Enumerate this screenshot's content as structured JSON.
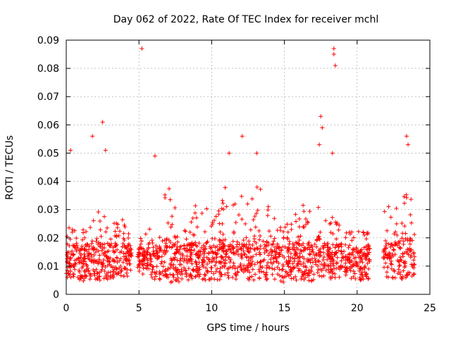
{
  "chart_data": {
    "type": "scatter",
    "title": "Day 062 of 2022, Rate Of TEC Index for receiver mchl",
    "xlabel": "GPS time / hours",
    "ylabel": "ROTI / TECUs",
    "xlim": [
      0,
      25
    ],
    "ylim": [
      0,
      0.09
    ],
    "x_ticks": [
      "0",
      "5",
      "10",
      "15",
      "20",
      "25"
    ],
    "y_ticks": [
      "0",
      "0.01",
      "0.02",
      "0.03",
      "0.04",
      "0.05",
      "0.06",
      "0.07",
      "0.08",
      "0.09"
    ],
    "grid": true,
    "marker": "+",
    "colors": {
      "series": "#ff0000"
    },
    "data_gaps_hours": [
      [
        4.5,
        4.9
      ],
      [
        20.9,
        21.8
      ]
    ],
    "outliers": [
      {
        "x": 5.2,
        "y": 0.087
      },
      {
        "x": 18.4,
        "y": 0.087
      },
      {
        "x": 18.4,
        "y": 0.085
      },
      {
        "x": 18.5,
        "y": 0.081
      },
      {
        "x": 17.5,
        "y": 0.063
      },
      {
        "x": 17.6,
        "y": 0.059
      },
      {
        "x": 2.5,
        "y": 0.061
      },
      {
        "x": 1.8,
        "y": 0.056
      },
      {
        "x": 12.1,
        "y": 0.056
      },
      {
        "x": 23.4,
        "y": 0.056
      },
      {
        "x": 17.4,
        "y": 0.053
      },
      {
        "x": 0.3,
        "y": 0.051
      },
      {
        "x": 18.3,
        "y": 0.05
      },
      {
        "x": 2.7,
        "y": 0.051
      },
      {
        "x": 6.1,
        "y": 0.049
      },
      {
        "x": 11.2,
        "y": 0.05
      },
      {
        "x": 13.1,
        "y": 0.05
      },
      {
        "x": 23.5,
        "y": 0.053
      }
    ],
    "series": [
      {
        "x": [
          0.0,
          0.5,
          1.0,
          1.5,
          2.0,
          2.5,
          3.0,
          3.5,
          4.0,
          4.5,
          5.0,
          5.5,
          6.0,
          6.5,
          7.0,
          7.5,
          8.0,
          8.5,
          9.0,
          9.5,
          10.0,
          10.5,
          11.0,
          11.5,
          12.0,
          12.5,
          13.0,
          13.5,
          14.0,
          14.5,
          15.0,
          15.5,
          16.0,
          16.5,
          17.0,
          17.5,
          18.0,
          18.5,
          19.0,
          19.5,
          20.0,
          20.5,
          21.8,
          22.0,
          22.5,
          23.0,
          23.5,
          24.0
        ],
        "y_low": [
          0.006,
          0.006,
          0.005,
          0.004,
          0.005,
          0.005,
          0.005,
          0.006,
          0.006,
          0.007,
          0.007,
          0.006,
          0.005,
          0.005,
          0.004,
          0.004,
          0.005,
          0.005,
          0.005,
          0.005,
          0.005,
          0.005,
          0.005,
          0.005,
          0.005,
          0.005,
          0.005,
          0.005,
          0.005,
          0.005,
          0.004,
          0.005,
          0.005,
          0.005,
          0.004,
          0.005,
          0.005,
          0.005,
          0.005,
          0.005,
          0.005,
          0.005,
          0.007,
          0.006,
          0.005,
          0.005,
          0.005,
          0.006
        ],
        "y_median": [
          0.012,
          0.012,
          0.011,
          0.012,
          0.012,
          0.013,
          0.012,
          0.012,
          0.012,
          0.012,
          0.011,
          0.012,
          0.012,
          0.013,
          0.014,
          0.013,
          0.012,
          0.012,
          0.013,
          0.013,
          0.012,
          0.012,
          0.013,
          0.013,
          0.013,
          0.013,
          0.013,
          0.014,
          0.013,
          0.012,
          0.012,
          0.012,
          0.013,
          0.013,
          0.013,
          0.014,
          0.013,
          0.012,
          0.012,
          0.011,
          0.011,
          0.011,
          0.012,
          0.012,
          0.013,
          0.013,
          0.014,
          0.013
        ],
        "y_high": [
          0.026,
          0.024,
          0.021,
          0.027,
          0.029,
          0.035,
          0.028,
          0.03,
          0.028,
          0.022,
          0.02,
          0.022,
          0.025,
          0.032,
          0.04,
          0.032,
          0.028,
          0.025,
          0.035,
          0.033,
          0.028,
          0.03,
          0.04,
          0.035,
          0.038,
          0.035,
          0.038,
          0.04,
          0.036,
          0.03,
          0.028,
          0.028,
          0.032,
          0.034,
          0.038,
          0.042,
          0.035,
          0.03,
          0.028,
          0.025,
          0.024,
          0.022,
          0.03,
          0.033,
          0.03,
          0.032,
          0.04,
          0.036
        ]
      }
    ]
  }
}
